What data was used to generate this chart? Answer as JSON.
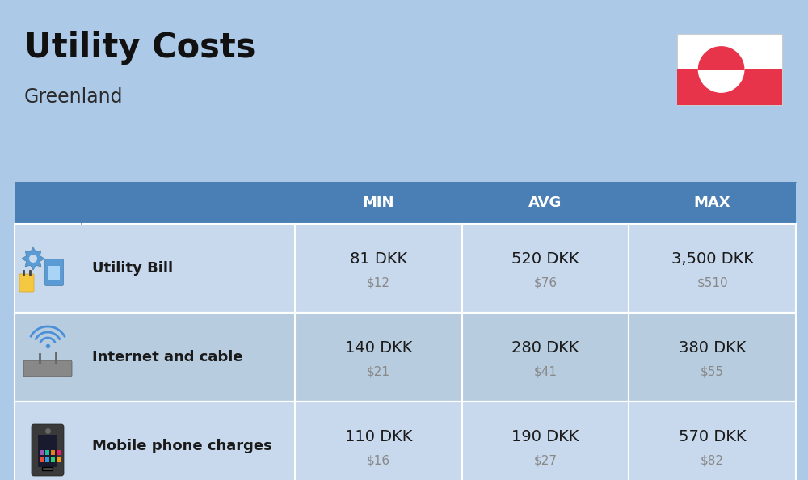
{
  "title": "Utility Costs",
  "subtitle": "Greenland",
  "background_color": "#adc9e8",
  "header_bg_color": "#4a7fb5",
  "header_text_color": "#ffffff",
  "row_bg_color_odd": "#c8d9ed",
  "row_bg_color_even": "#b8ccdf",
  "cell_text_color": "#1a1a1a",
  "usd_text_color": "#888888",
  "col_headers": [
    "MIN",
    "AVG",
    "MAX"
  ],
  "rows": [
    {
      "label": "Utility Bill",
      "min_dkk": "81 DKK",
      "min_usd": "$12",
      "avg_dkk": "520 DKK",
      "avg_usd": "$76",
      "max_dkk": "3,500 DKK",
      "max_usd": "$510",
      "icon": "utility"
    },
    {
      "label": "Internet and cable",
      "min_dkk": "140 DKK",
      "min_usd": "$21",
      "avg_dkk": "280 DKK",
      "avg_usd": "$41",
      "max_dkk": "380 DKK",
      "max_usd": "$55",
      "icon": "internet"
    },
    {
      "label": "Mobile phone charges",
      "min_dkk": "110 DKK",
      "min_usd": "$16",
      "avg_dkk": "190 DKK",
      "avg_usd": "$27",
      "max_dkk": "570 DKK",
      "max_usd": "$82",
      "icon": "mobile"
    }
  ],
  "title_fontsize": 30,
  "subtitle_fontsize": 17,
  "header_fontsize": 13,
  "label_fontsize": 13,
  "value_fontsize": 14,
  "usd_fontsize": 11,
  "flag_white": "#ffffff",
  "flag_red": "#e8344a",
  "divider_color": "#ffffff",
  "table_border_color": "#4a7fb5"
}
